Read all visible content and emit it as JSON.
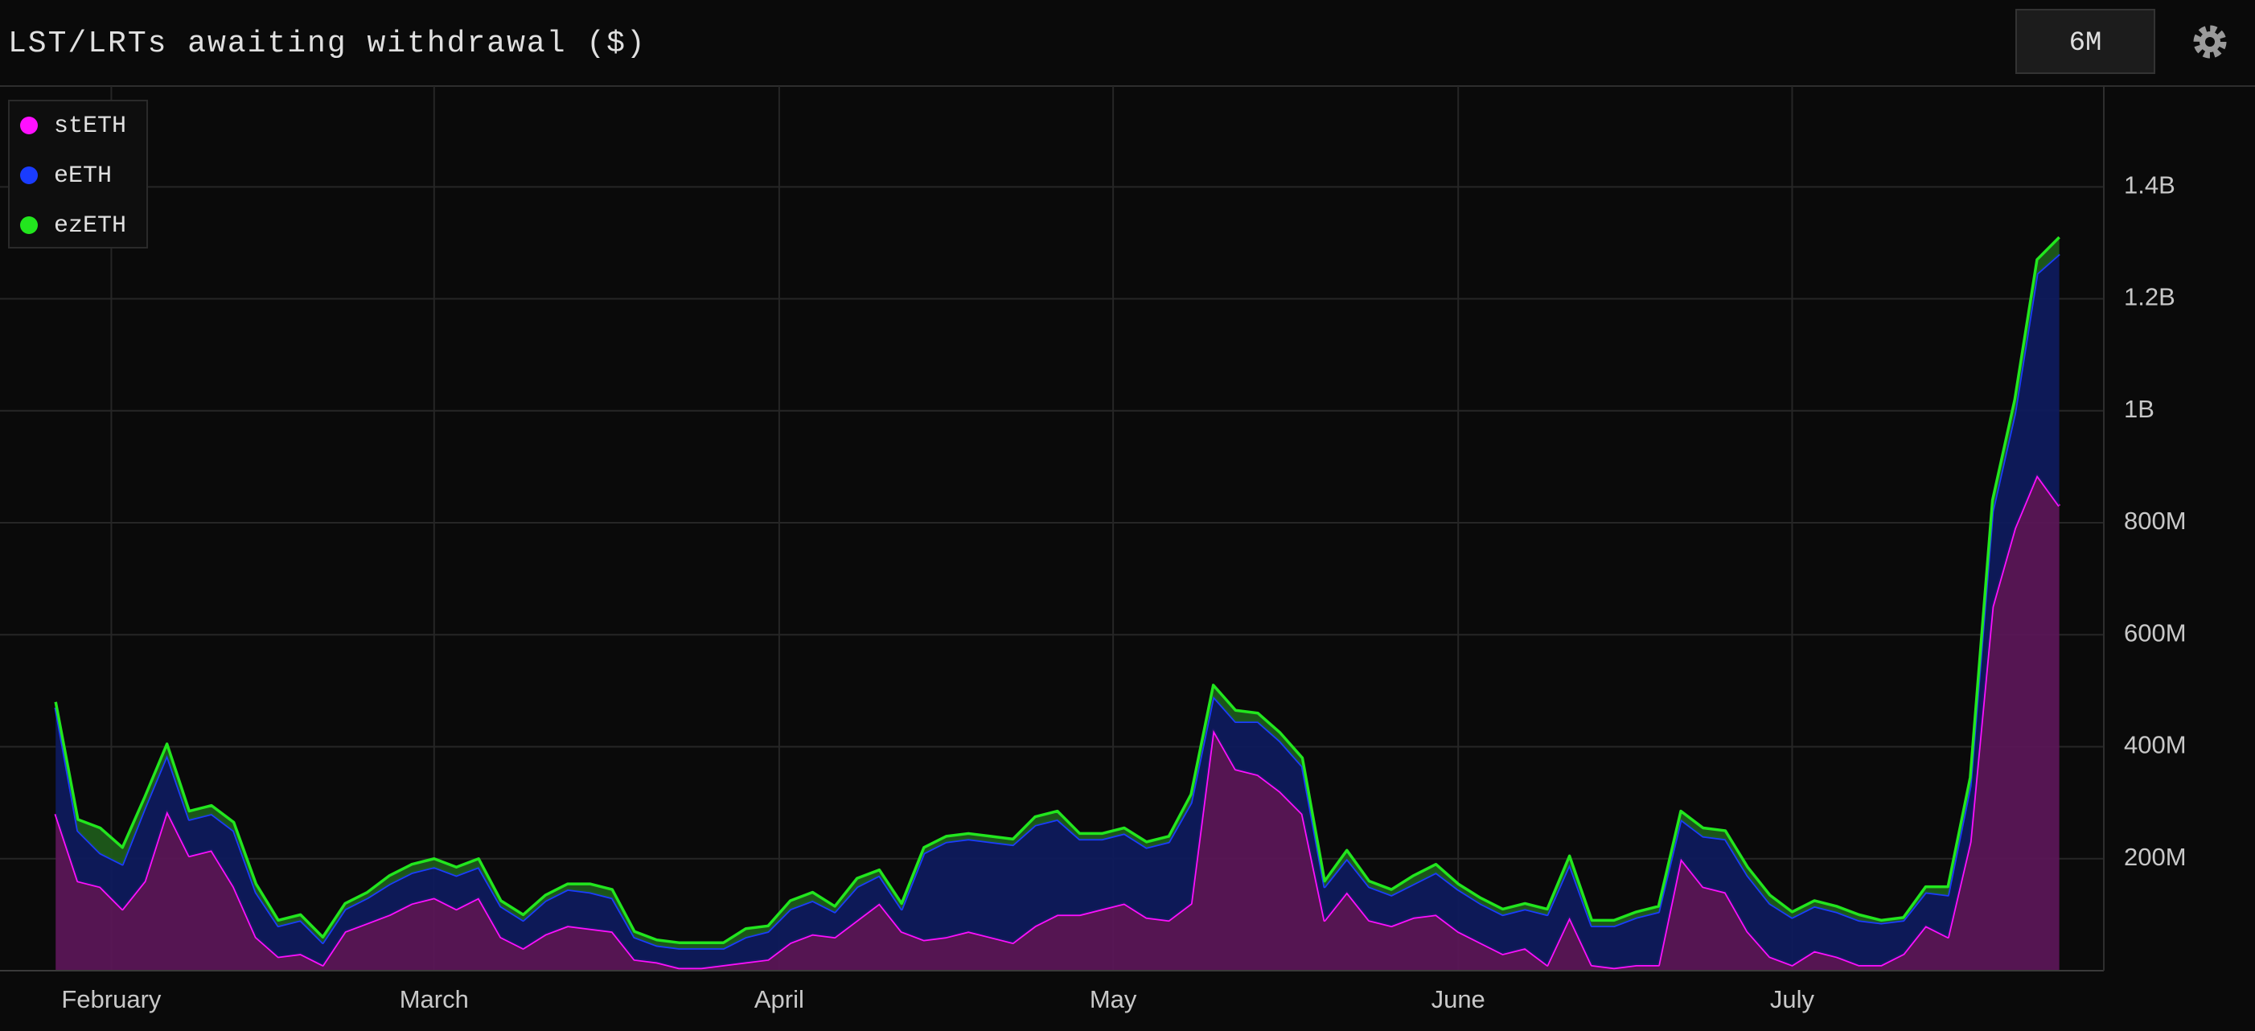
{
  "chart_data": {
    "type": "stacked_area",
    "title": "LST/LRTs awaiting withdrawal ($)",
    "range_selector": "6M",
    "legend": "top-left",
    "grid": true,
    "x": [
      0,
      2,
      4,
      6,
      8,
      10,
      12,
      14,
      16,
      18,
      20,
      22,
      24,
      26,
      28,
      30,
      32,
      34,
      36,
      38,
      40,
      42,
      44,
      46,
      48,
      50,
      52,
      54,
      56,
      58,
      60,
      62,
      64,
      66,
      68,
      70,
      72,
      74,
      76,
      78,
      80,
      82,
      84,
      86,
      88,
      90,
      92,
      94,
      96,
      98,
      100,
      102,
      104,
      106,
      108,
      110,
      112,
      114,
      116,
      118,
      120,
      122,
      124,
      126,
      128,
      130,
      132,
      134,
      136,
      138,
      140,
      142,
      144,
      146,
      148,
      150,
      152,
      154,
      156,
      158,
      160,
      162,
      164,
      166,
      168,
      170,
      172,
      174,
      176,
      178,
      180
    ],
    "xlim": [
      -5,
      184
    ],
    "xticks": [
      {
        "value": 5,
        "label": "February"
      },
      {
        "value": 34,
        "label": "March"
      },
      {
        "value": 65,
        "label": "April"
      },
      {
        "value": 95,
        "label": "May"
      },
      {
        "value": 126,
        "label": "June"
      },
      {
        "value": 156,
        "label": "July"
      }
    ],
    "ylim": [
      0,
      1580000000
    ],
    "yticks": [
      {
        "value": 200000000,
        "label": "200M"
      },
      {
        "value": 400000000,
        "label": "400M"
      },
      {
        "value": 600000000,
        "label": "600M"
      },
      {
        "value": 800000000,
        "label": "800M"
      },
      {
        "value": 1000000000,
        "label": "1B"
      },
      {
        "value": 1200000000,
        "label": "1.2B"
      },
      {
        "value": 1400000000,
        "label": "1.4B"
      }
    ],
    "series": [
      {
        "name": "stETH",
        "color": "#ff10ff",
        "fill": "#5a1656",
        "values": [
          280000000,
          160000000,
          150000000,
          110000000,
          160000000,
          285000000,
          205000000,
          215000000,
          150000000,
          60000000,
          25000000,
          30000000,
          10000000,
          70000000,
          85000000,
          100000000,
          120000000,
          130000000,
          110000000,
          130000000,
          60000000,
          40000000,
          65000000,
          80000000,
          75000000,
          70000000,
          20000000,
          15000000,
          5000000,
          5000000,
          10000000,
          15000000,
          20000000,
          50000000,
          65000000,
          60000000,
          90000000,
          120000000,
          70000000,
          55000000,
          60000000,
          70000000,
          60000000,
          50000000,
          80000000,
          100000000,
          100000000,
          110000000,
          120000000,
          95000000,
          90000000,
          120000000,
          430000000,
          360000000,
          350000000,
          320000000,
          280000000,
          90000000,
          140000000,
          90000000,
          80000000,
          95000000,
          100000000,
          70000000,
          50000000,
          30000000,
          40000000,
          10000000,
          95000000,
          10000000,
          5000000,
          10000000,
          10000000,
          200000000,
          150000000,
          140000000,
          70000000,
          25000000,
          10000000,
          35000000,
          25000000,
          10000000,
          10000000,
          30000000,
          80000000,
          60000000,
          230000000,
          650000000,
          790000000,
          885000000,
          830000000
        ]
      },
      {
        "name": "eETH",
        "color": "#1a3cff",
        "fill": "#0e1a5c",
        "values": [
          190000000,
          90000000,
          60000000,
          80000000,
          130000000,
          100000000,
          65000000,
          65000000,
          100000000,
          80000000,
          55000000,
          60000000,
          40000000,
          40000000,
          45000000,
          55000000,
          55000000,
          55000000,
          60000000,
          55000000,
          55000000,
          50000000,
          60000000,
          65000000,
          65000000,
          60000000,
          40000000,
          30000000,
          35000000,
          35000000,
          30000000,
          45000000,
          50000000,
          60000000,
          60000000,
          45000000,
          60000000,
          50000000,
          40000000,
          155000000,
          170000000,
          165000000,
          170000000,
          175000000,
          180000000,
          170000000,
          135000000,
          125000000,
          125000000,
          125000000,
          140000000,
          180000000,
          60000000,
          85000000,
          95000000,
          90000000,
          85000000,
          60000000,
          60000000,
          60000000,
          55000000,
          60000000,
          75000000,
          75000000,
          70000000,
          70000000,
          70000000,
          90000000,
          95000000,
          70000000,
          75000000,
          85000000,
          95000000,
          70000000,
          90000000,
          95000000,
          100000000,
          95000000,
          85000000,
          80000000,
          80000000,
          80000000,
          75000000,
          60000000,
          60000000,
          75000000,
          100000000,
          170000000,
          205000000,
          360000000,
          450000000
        ]
      },
      {
        "name": "ezETH",
        "color": "#22e61e",
        "fill": "#1d5a1a",
        "values": [
          10000000,
          20000000,
          45000000,
          30000000,
          20000000,
          20000000,
          15000000,
          15000000,
          15000000,
          15000000,
          10000000,
          10000000,
          10000000,
          10000000,
          10000000,
          15000000,
          15000000,
          15000000,
          15000000,
          15000000,
          10000000,
          10000000,
          10000000,
          10000000,
          15000000,
          15000000,
          10000000,
          10000000,
          10000000,
          10000000,
          10000000,
          15000000,
          10000000,
          15000000,
          15000000,
          10000000,
          15000000,
          10000000,
          10000000,
          10000000,
          10000000,
          10000000,
          10000000,
          10000000,
          15000000,
          15000000,
          10000000,
          10000000,
          10000000,
          10000000,
          10000000,
          15000000,
          20000000,
          20000000,
          15000000,
          15000000,
          15000000,
          10000000,
          15000000,
          10000000,
          10000000,
          15000000,
          15000000,
          10000000,
          10000000,
          10000000,
          10000000,
          10000000,
          15000000,
          10000000,
          10000000,
          10000000,
          10000000,
          15000000,
          15000000,
          15000000,
          15000000,
          15000000,
          10000000,
          10000000,
          10000000,
          10000000,
          5000000,
          5000000,
          10000000,
          15000000,
          15000000,
          20000000,
          25000000,
          25000000,
          30000000
        ]
      }
    ]
  }
}
